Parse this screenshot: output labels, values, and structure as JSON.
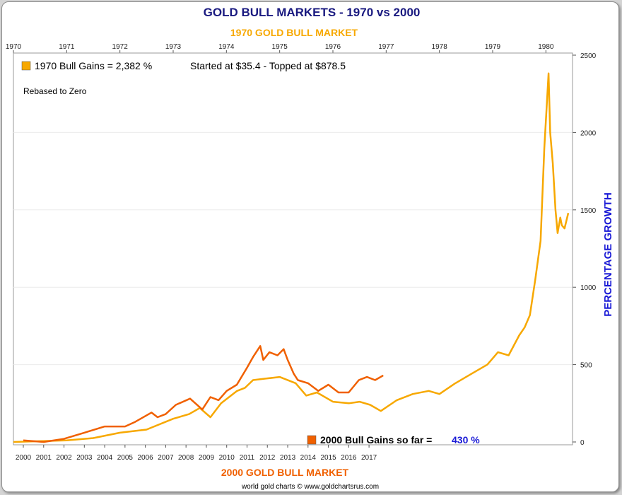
{
  "chart_data": {
    "type": "line",
    "title": "GOLD BULL MARKETS - 1970 vs 2000",
    "top_axis_title": "1970 GOLD BULL MARKET",
    "bottom_axis_title": "2000 GOLD BULL MARKET",
    "ylabel": "PERCENTAGE GROWTH",
    "ylim": [
      0,
      2500
    ],
    "y_ticks": [
      "0",
      "500",
      "1000",
      "1500",
      "2000",
      "2500"
    ],
    "top_x_ticks": [
      "1970",
      "1971",
      "1972",
      "1973",
      "1974",
      "1975",
      "1976",
      "1977",
      "1978",
      "1979",
      "1980"
    ],
    "bottom_x_ticks": [
      "2000",
      "2001",
      "2002",
      "2003",
      "2004",
      "2005",
      "2006",
      "2007",
      "2008",
      "2009",
      "2010",
      "2011",
      "2012",
      "2013",
      "2014",
      "2015",
      "2016",
      "2017"
    ],
    "annotation": "Rebased to Zero",
    "legend_1970": {
      "label": "1970 Bull Gains = 2,382 %",
      "note": "Started at $35.4 - Topped at $878.5"
    },
    "legend_2000": {
      "label": "2000 Bull Gains so far =",
      "value": "430 %"
    },
    "footer": "world gold charts © www.goldchartsrus.com",
    "grid": true,
    "colors": {
      "series_1970": "#f7a800",
      "series_2000": "#f06000",
      "title": "#1a1a80",
      "axis_title_1970": "#f7a800",
      "axis_title_2000": "#f06000",
      "ylabel": "#1a1ad6",
      "value_2000": "#1a1ad6"
    },
    "series": [
      {
        "name": "1970",
        "axis": "top",
        "x": [
          1970.0,
          1970.5,
          1971.0,
          1971.5,
          1972.0,
          1972.5,
          1973.0,
          1973.3,
          1973.5,
          1973.7,
          1973.9,
          1974.2,
          1974.35,
          1974.5,
          1974.75,
          1975.0,
          1975.3,
          1975.5,
          1975.7,
          1976.0,
          1976.3,
          1976.5,
          1976.7,
          1976.9,
          1977.2,
          1977.5,
          1977.8,
          1978.0,
          1978.3,
          1978.6,
          1978.9,
          1979.1,
          1979.3,
          1979.5,
          1979.6,
          1979.7,
          1979.8,
          1979.9,
          1979.97,
          1980.05,
          1980.08,
          1980.13,
          1980.18,
          1980.22,
          1980.27,
          1980.3,
          1980.35,
          1980.42
        ],
        "values": [
          0,
          5,
          10,
          25,
          60,
          80,
          150,
          180,
          220,
          160,
          250,
          330,
          350,
          400,
          410,
          420,
          380,
          300,
          320,
          260,
          250,
          260,
          240,
          200,
          270,
          310,
          330,
          310,
          380,
          440,
          500,
          580,
          560,
          690,
          740,
          820,
          1050,
          1300,
          1900,
          2382,
          2000,
          1800,
          1500,
          1350,
          1450,
          1400,
          1380,
          1480
        ]
      },
      {
        "name": "2000",
        "axis": "bottom",
        "x": [
          2000.0,
          2001.0,
          2002.0,
          2003.0,
          2004.0,
          2005.0,
          2005.5,
          2006.3,
          2006.6,
          2007.0,
          2007.5,
          2008.2,
          2008.8,
          2009.2,
          2009.6,
          2010.0,
          2010.5,
          2011.0,
          2011.3,
          2011.65,
          2011.8,
          2012.1,
          2012.5,
          2012.8,
          2013.0,
          2013.3,
          2013.5,
          2014.0,
          2014.5,
          2015.0,
          2015.5,
          2016.0,
          2016.5,
          2016.9,
          2017.3,
          2017.7
        ],
        "values": [
          10,
          0,
          20,
          60,
          100,
          100,
          130,
          190,
          160,
          180,
          240,
          280,
          210,
          290,
          270,
          330,
          370,
          480,
          550,
          620,
          530,
          580,
          560,
          600,
          530,
          440,
          400,
          380,
          330,
          370,
          320,
          320,
          400,
          420,
          400,
          430
        ]
      }
    ]
  }
}
